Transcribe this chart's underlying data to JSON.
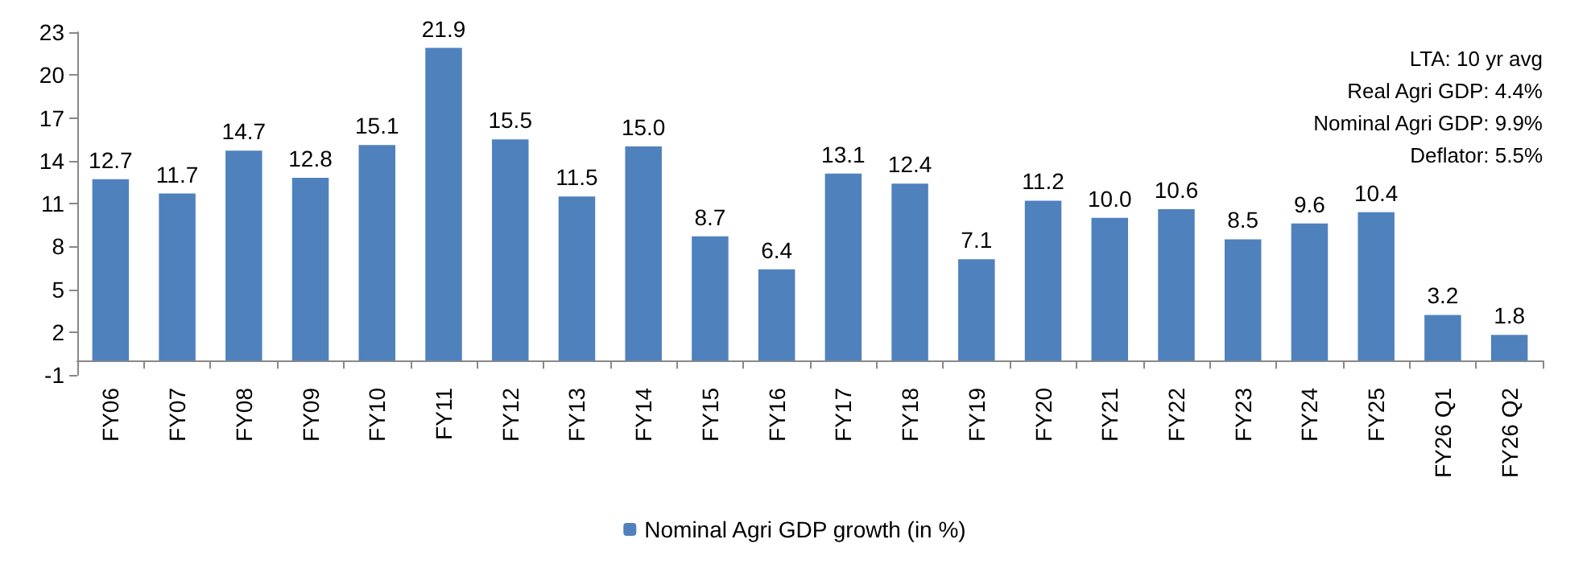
{
  "chart_data": {
    "type": "bar",
    "categories": [
      "FY06",
      "FY07",
      "FY08",
      "FY09",
      "FY10",
      "FY11",
      "FY12",
      "FY13",
      "FY14",
      "FY15",
      "FY16",
      "FY17",
      "FY18",
      "FY19",
      "FY20",
      "FY21",
      "FY22",
      "FY23",
      "FY24",
      "FY25",
      "FY26 Q1",
      "FY26 Q2"
    ],
    "series": [
      {
        "name": "Nominal Agri GDP growth (in %)",
        "color": "#4f81bd",
        "values": [
          12.7,
          11.7,
          14.7,
          12.8,
          15.1,
          21.9,
          15.5,
          11.5,
          15.0,
          8.7,
          6.4,
          13.1,
          12.4,
          7.1,
          11.2,
          10.0,
          10.6,
          8.5,
          9.6,
          10.4,
          3.2,
          1.8
        ],
        "value_labels": [
          "12.7",
          "11.7",
          "14.7",
          "12.8",
          "15.1",
          "21.9",
          "15.5",
          "11.5",
          "15.0",
          "8.7",
          "6.4",
          "13.1",
          "12.4",
          "7.1",
          "11.2",
          "10.0",
          "10.6",
          "8.5",
          "9.6",
          "10.4",
          "3.2",
          "1.8"
        ]
      }
    ],
    "ylim": [
      -1,
      23
    ],
    "yticks": [
      -1,
      2,
      5,
      8,
      11,
      14,
      17,
      20,
      23
    ],
    "legend": "bottom",
    "grid": false,
    "annotations": [
      "LTA: 10 yr avg",
      "Real Agri GDP: 4.4%",
      "Nominal Agri GDP: 9.9%",
      "Deflator: 5.5%"
    ]
  }
}
